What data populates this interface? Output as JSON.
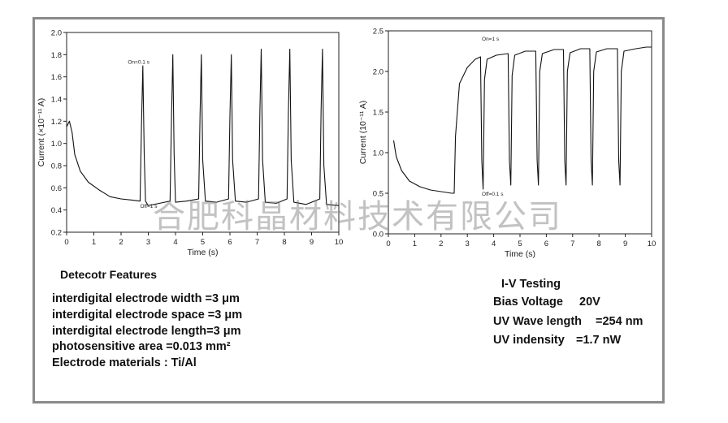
{
  "watermark": "合肥科晶材料技术有限公司",
  "chart_data": [
    {
      "type": "line",
      "xlabel": "Time (s)",
      "ylabel": "Current (×10⁻¹¹ A)",
      "xlim": [
        0,
        10
      ],
      "ylim": [
        0.2,
        2.0
      ],
      "x_ticks": [
        "0",
        "1",
        "2",
        "3",
        "4",
        "5",
        "6",
        "7",
        "8",
        "9",
        "10"
      ],
      "y_ticks": [
        "0.2",
        "0.4",
        "0.6",
        "0.8",
        "1.0",
        "1.2",
        "1.4",
        "1.6",
        "1.8",
        "2.0"
      ],
      "annotations": [
        "On=0.1 s",
        "Off=1 s"
      ],
      "series": [
        {
          "x": [
            0.0,
            0.1,
            0.2,
            0.3,
            0.5,
            0.8,
            1.2,
            1.6,
            2.0,
            2.4,
            2.7,
            2.75,
            2.8,
            2.85,
            2.9,
            3.0,
            3.4,
            3.8,
            3.85,
            3.9,
            3.95,
            4.0,
            4.4,
            4.85,
            4.9,
            4.95,
            5.0,
            5.1,
            5.5,
            5.95,
            6.0,
            6.05,
            6.1,
            6.2,
            6.6,
            7.05,
            7.1,
            7.15,
            7.2,
            7.3,
            7.7,
            8.1,
            8.15,
            8.2,
            8.25,
            8.35,
            8.8,
            9.3,
            9.35,
            9.4,
            9.45,
            9.55,
            10.0
          ],
          "y": [
            1.15,
            1.2,
            1.1,
            0.9,
            0.75,
            0.65,
            0.58,
            0.52,
            0.5,
            0.49,
            0.48,
            1.15,
            1.7,
            0.9,
            0.48,
            0.44,
            0.46,
            0.48,
            1.2,
            1.8,
            0.9,
            0.47,
            0.48,
            0.5,
            1.25,
            1.8,
            0.85,
            0.48,
            0.47,
            0.5,
            1.25,
            1.8,
            0.85,
            0.48,
            0.47,
            0.5,
            1.3,
            1.85,
            0.85,
            0.47,
            0.46,
            0.5,
            1.3,
            1.85,
            0.85,
            0.47,
            0.45,
            0.5,
            1.3,
            1.85,
            0.8,
            0.45,
            0.44
          ]
        }
      ]
    },
    {
      "type": "line",
      "xlabel": "Time (s)",
      "ylabel": "Current (10⁻¹¹ A)",
      "xlim": [
        0,
        10
      ],
      "ylim": [
        0.0,
        2.5
      ],
      "x_ticks": [
        "0",
        "1",
        "2",
        "3",
        "4",
        "5",
        "6",
        "7",
        "8",
        "9",
        "10"
      ],
      "y_ticks": [
        "0.0",
        "0.5",
        "1.0",
        "1.5",
        "2.0",
        "2.5"
      ],
      "annotations": [
        "On=1 s",
        "Off=0.1 s"
      ],
      "series": [
        {
          "x": [
            0.2,
            0.3,
            0.5,
            0.8,
            1.2,
            1.6,
            2.0,
            2.4,
            2.5,
            2.55,
            2.7,
            3.0,
            3.3,
            3.5,
            3.55,
            3.6,
            3.65,
            3.75,
            4.1,
            4.55,
            4.6,
            4.65,
            4.7,
            4.8,
            5.2,
            5.6,
            5.65,
            5.7,
            5.75,
            5.85,
            6.3,
            6.65,
            6.7,
            6.75,
            6.8,
            6.9,
            7.3,
            7.65,
            7.7,
            7.75,
            7.8,
            7.9,
            8.3,
            8.7,
            8.75,
            8.8,
            8.85,
            8.95,
            9.4,
            9.8,
            10.0
          ],
          "y": [
            1.15,
            0.95,
            0.78,
            0.65,
            0.58,
            0.54,
            0.52,
            0.5,
            0.5,
            1.2,
            1.85,
            2.05,
            2.15,
            2.18,
            0.9,
            0.55,
            1.9,
            2.15,
            2.2,
            2.22,
            0.9,
            0.6,
            1.95,
            2.2,
            2.25,
            2.25,
            0.9,
            0.6,
            2.0,
            2.22,
            2.27,
            2.27,
            0.9,
            0.6,
            2.0,
            2.23,
            2.28,
            2.28,
            0.9,
            0.6,
            2.0,
            2.24,
            2.28,
            2.28,
            0.9,
            0.6,
            2.0,
            2.25,
            2.28,
            2.3,
            2.3
          ]
        }
      ]
    }
  ],
  "features": {
    "heading": "Detecotr Features",
    "lines": [
      "interdigital electrode width =3 μm",
      "interdigital electrode space =3 μm",
      "interdigital electrode length=3 μm",
      "photosensitive  area =0.013 mm²",
      "Electrode materials :  Ti/Al"
    ]
  },
  "iv_testing": {
    "heading": "I-V Testing",
    "items": [
      {
        "label": "Bias Voltage",
        "value": "20V"
      },
      {
        "label": "UV Wave length",
        "value": "=254 nm"
      },
      {
        "label": "UV indensity",
        "value": "=1.7 nW"
      }
    ]
  }
}
